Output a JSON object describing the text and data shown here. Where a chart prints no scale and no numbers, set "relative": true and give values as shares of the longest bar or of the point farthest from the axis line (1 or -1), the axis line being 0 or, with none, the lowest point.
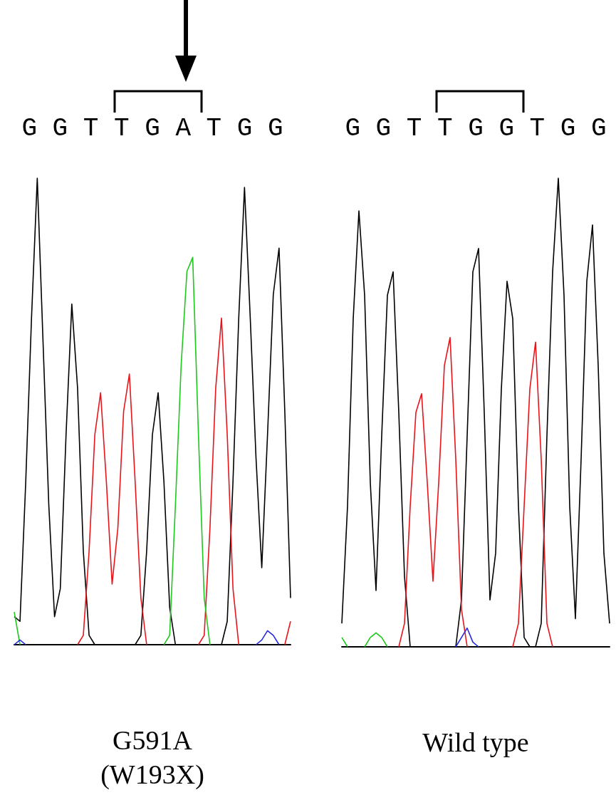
{
  "chart_data": [
    {
      "type": "line",
      "relative": true,
      "marker": "none",
      "annotations": [
        "G G T T G A T G G"
      ],
      "xlabel": "G591A\n(W193X)",
      "categories": [
        null,
        null,
        null,
        null,
        null,
        null,
        null,
        null,
        null,
        null,
        null,
        null,
        null,
        null,
        null,
        null,
        null,
        null,
        null,
        null,
        null,
        null,
        null,
        null,
        null,
        null,
        null,
        null,
        null,
        null,
        null,
        null,
        null,
        null,
        null,
        null,
        null,
        null,
        null,
        null,
        null,
        null,
        null,
        null,
        null,
        null,
        null,
        null,
        null
      ],
      "series": [
        {
          "color": "#000000",
          "values": [
            0.06,
            0.05,
            0.35,
            0.7,
            1,
            0.65,
            0.3,
            0.06,
            0.12,
            0.45,
            0.73,
            0.55,
            0.2,
            0.02,
            0,
            null,
            null,
            null,
            null,
            null,
            null,
            0,
            0.02,
            0.2,
            0.45,
            0.54,
            0.35,
            0.08,
            0,
            null,
            null,
            null,
            null,
            null,
            null,
            null,
            0,
            0.05,
            0.35,
            0.7,
            0.98,
            0.7,
            0.4,
            0.165,
            0.45,
            0.75,
            0.85,
            0.5,
            0.1
          ]
        },
        {
          "color": "#e8141c",
          "values": [
            null,
            null,
            null,
            null,
            null,
            null,
            null,
            null,
            null,
            null,
            null,
            0,
            0.02,
            0.2,
            0.45,
            0.54,
            0.35,
            0.13,
            0.25,
            0.5,
            0.58,
            0.35,
            0.1,
            0,
            null,
            null,
            null,
            null,
            null,
            null,
            null,
            null,
            0,
            0.02,
            0.25,
            0.55,
            0.7,
            0.45,
            0.12,
            0,
            null,
            null,
            null,
            null,
            null,
            null,
            null,
            0,
            0.05
          ]
        },
        {
          "color": "#1ec81e",
          "values": [
            0.07,
            0,
            null,
            null,
            null,
            null,
            null,
            null,
            null,
            null,
            null,
            null,
            null,
            null,
            null,
            null,
            null,
            null,
            null,
            null,
            null,
            null,
            null,
            null,
            null,
            null,
            0,
            0.02,
            0.3,
            0.6,
            0.8,
            0.83,
            0.45,
            0.1,
            0,
            null,
            null,
            null,
            null,
            null,
            null,
            null,
            null,
            null,
            null,
            null,
            null,
            null,
            null
          ]
        },
        {
          "color": "#2828e0",
          "values": [
            0,
            0.01,
            0,
            null,
            null,
            null,
            null,
            null,
            null,
            null,
            null,
            null,
            null,
            null,
            null,
            null,
            null,
            null,
            null,
            null,
            null,
            null,
            null,
            null,
            null,
            null,
            null,
            null,
            null,
            null,
            null,
            null,
            null,
            null,
            null,
            null,
            null,
            null,
            null,
            null,
            null,
            null,
            0,
            0.01,
            0.03,
            0.02,
            0,
            null,
            null
          ]
        }
      ]
    },
    {
      "type": "line",
      "relative": true,
      "marker": "none",
      "annotations": [
        "G G T T G G T G G"
      ],
      "xlabel": "Wild type",
      "categories": [
        null,
        null,
        null,
        null,
        null,
        null,
        null,
        null,
        null,
        null,
        null,
        null,
        null,
        null,
        null,
        null,
        null,
        null,
        null,
        null,
        null,
        null,
        null,
        null,
        null,
        null,
        null,
        null,
        null,
        null,
        null,
        null,
        null,
        null,
        null,
        null,
        null,
        null,
        null,
        null,
        null,
        null,
        null,
        null,
        null,
        null,
        null,
        null
      ],
      "series": [
        {
          "color": "#000000",
          "values": [
            0.05,
            0.3,
            0.7,
            0.93,
            0.75,
            0.35,
            0.12,
            0.45,
            0.75,
            0.8,
            0.5,
            0.15,
            0,
            null,
            null,
            null,
            null,
            null,
            null,
            null,
            0,
            0.1,
            0.45,
            0.8,
            0.85,
            0.5,
            0.1,
            0.2,
            0.55,
            0.78,
            0.7,
            0.3,
            0.02,
            0,
            0,
            0.05,
            0.45,
            0.8,
            1,
            0.75,
            0.3,
            0.06,
            0.4,
            0.78,
            0.9,
            0.6,
            0.2,
            0.05
          ]
        },
        {
          "color": "#e8141c",
          "values": [
            null,
            null,
            null,
            null,
            null,
            null,
            null,
            null,
            null,
            null,
            0,
            0.05,
            0.3,
            0.5,
            0.54,
            0.35,
            0.14,
            0.35,
            0.6,
            0.66,
            0.4,
            0.08,
            0,
            null,
            null,
            null,
            null,
            null,
            null,
            null,
            0,
            0.05,
            0.3,
            0.55,
            0.65,
            0.4,
            0.05,
            0,
            null,
            null,
            null,
            null,
            null,
            null,
            null,
            null,
            null,
            null
          ]
        },
        {
          "color": "#1ec81e",
          "values": [
            0.02,
            0,
            null,
            null,
            0,
            0.02,
            0.03,
            0.02,
            0,
            null,
            null,
            null,
            null,
            null,
            null,
            null,
            null,
            null,
            null,
            null,
            null,
            null,
            null,
            null,
            null,
            null,
            null,
            null,
            null,
            null,
            null,
            null,
            null,
            null,
            null,
            null,
            null,
            null,
            null,
            null,
            null,
            null,
            null,
            null,
            null,
            null,
            null,
            null
          ]
        },
        {
          "color": "#2828e0",
          "values": [
            null,
            null,
            null,
            null,
            null,
            null,
            null,
            null,
            null,
            null,
            null,
            null,
            null,
            null,
            null,
            null,
            null,
            null,
            null,
            null,
            0,
            0.02,
            0.04,
            0.01,
            0,
            null,
            null,
            null,
            null,
            null,
            null,
            null,
            null,
            null,
            null,
            null,
            null,
            null,
            null,
            null,
            null,
            null,
            null,
            null,
            null,
            null,
            null,
            null
          ]
        }
      ]
    }
  ]
}
